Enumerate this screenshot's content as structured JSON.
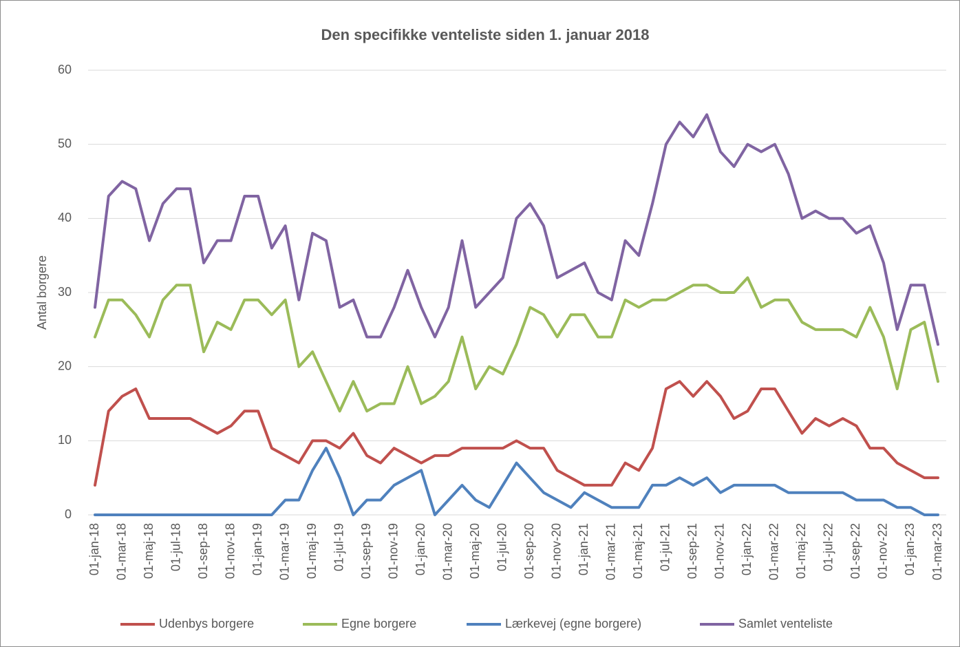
{
  "chart_data": {
    "type": "line",
    "title": "Den specifikke venteliste siden 1. januar 2018",
    "y_label": "Antal borgere",
    "categories": [
      "01-jan-18",
      null,
      "01-mar-18",
      null,
      "01-maj-18",
      null,
      "01-jul-18",
      null,
      "01-sep-18",
      null,
      "01-nov-18",
      null,
      "01-jan-19",
      null,
      "01-mar-19",
      null,
      "01-maj-19",
      null,
      "01-jul-19",
      null,
      "01-sep-19",
      null,
      "01-nov-19",
      null,
      "01-jan-20",
      null,
      "01-mar-20",
      null,
      "01-maj-20",
      null,
      "01-jul-20",
      null,
      "01-sep-20",
      null,
      "01-nov-20",
      null,
      "01-jan-21",
      null,
      "01-mar-21",
      null,
      "01-maj-21",
      null,
      "01-jul-21",
      null,
      "01-sep-21",
      null,
      "01-nov-21",
      null,
      "01-jan-22",
      null,
      "01-mar-22",
      null,
      "01-maj-22",
      null,
      "01-jul-22",
      null,
      "01-sep-22",
      null,
      "01-nov-22",
      null,
      "01-jan-23",
      null,
      "01-mar-23"
    ],
    "series": [
      {
        "name": "Udenbys borgere",
        "color": "#c0504d",
        "values": [
          4,
          14,
          16,
          17,
          13,
          13,
          13,
          13,
          12,
          11,
          12,
          14,
          14,
          9,
          8,
          7,
          10,
          10,
          9,
          11,
          8,
          7,
          9,
          8,
          7,
          8,
          8,
          9,
          9,
          9,
          9,
          10,
          9,
          9,
          6,
          5,
          4,
          4,
          4,
          7,
          6,
          9,
          17,
          18,
          16,
          18,
          16,
          13,
          14,
          17,
          17,
          14,
          11,
          13,
          12,
          13,
          12,
          9,
          9,
          7,
          6,
          5,
          5
        ]
      },
      {
        "name": "Egne borgere",
        "color": "#9bbb59",
        "values": [
          24,
          29,
          29,
          27,
          24,
          29,
          31,
          31,
          22,
          26,
          25,
          29,
          29,
          27,
          29,
          20,
          22,
          18,
          14,
          18,
          14,
          15,
          15,
          20,
          15,
          16,
          18,
          24,
          17,
          20,
          19,
          23,
          28,
          27,
          24,
          27,
          27,
          24,
          24,
          29,
          28,
          29,
          29,
          30,
          31,
          31,
          30,
          30,
          32,
          28,
          29,
          29,
          26,
          25,
          25,
          25,
          24,
          28,
          24,
          17,
          25,
          26,
          18
        ]
      },
      {
        "name": "Lærkevej (egne borgere)",
        "color": "#4f81bd",
        "values": [
          0,
          0,
          0,
          0,
          0,
          0,
          0,
          0,
          0,
          0,
          0,
          0,
          0,
          0,
          2,
          2,
          6,
          9,
          5,
          0,
          2,
          2,
          4,
          5,
          6,
          0,
          2,
          4,
          2,
          1,
          4,
          7,
          5,
          3,
          2,
          1,
          3,
          2,
          1,
          1,
          1,
          4,
          4,
          5,
          4,
          5,
          3,
          4,
          4,
          4,
          4,
          3,
          3,
          3,
          3,
          3,
          2,
          2,
          2,
          1,
          1,
          0,
          0
        ]
      },
      {
        "name": "Samlet venteliste",
        "color": "#8064a2",
        "values": [
          28,
          43,
          45,
          44,
          37,
          42,
          44,
          44,
          34,
          37,
          37,
          43,
          43,
          36,
          39,
          29,
          38,
          37,
          28,
          29,
          24,
          24,
          28,
          33,
          28,
          24,
          28,
          37,
          28,
          30,
          32,
          40,
          42,
          39,
          32,
          33,
          34,
          30,
          29,
          37,
          35,
          42,
          50,
          53,
          51,
          54,
          49,
          47,
          50,
          49,
          50,
          46,
          40,
          41,
          40,
          40,
          38,
          39,
          34,
          25,
          31,
          31,
          23
        ]
      }
    ],
    "ylim": [
      0,
      60
    ],
    "yticks": [
      0,
      10,
      20,
      30,
      40,
      50,
      60
    ],
    "grid": true
  }
}
